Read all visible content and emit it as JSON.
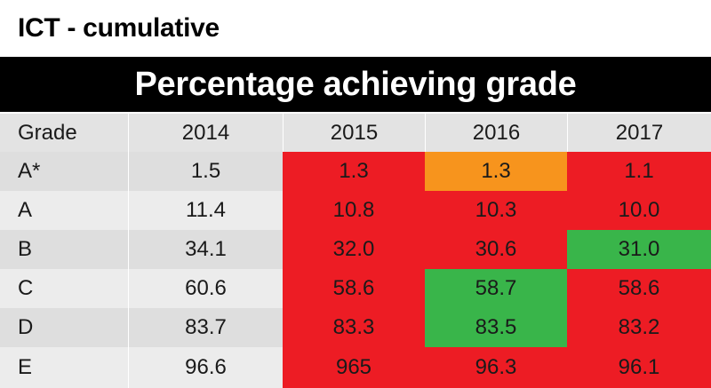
{
  "header": {
    "title": "ICT - cumulative",
    "banner": "Percentage achieving grade"
  },
  "colors": {
    "red": "#ed1c24",
    "orange": "#f7941d",
    "green": "#39b54a",
    "header_bg": "#000000"
  },
  "chart_data": {
    "type": "table",
    "title": "Percentage achieving grade",
    "columns": [
      "Grade",
      "2014",
      "2015",
      "2016",
      "2017"
    ],
    "rows": [
      {
        "grade": "A*",
        "values": [
          "1.5",
          "1.3",
          "1.3",
          "1.1"
        ],
        "status": [
          "none",
          "red",
          "orange",
          "red"
        ]
      },
      {
        "grade": "A",
        "values": [
          "11.4",
          "10.8",
          "10.3",
          "10.0"
        ],
        "status": [
          "none",
          "red",
          "red",
          "red"
        ]
      },
      {
        "grade": "B",
        "values": [
          "34.1",
          "32.0",
          "30.6",
          "31.0"
        ],
        "status": [
          "none",
          "red",
          "red",
          "green"
        ]
      },
      {
        "grade": "C",
        "values": [
          "60.6",
          "58.6",
          "58.7",
          "58.6"
        ],
        "status": [
          "none",
          "red",
          "green",
          "red"
        ]
      },
      {
        "grade": "D",
        "values": [
          "83.7",
          "83.3",
          "83.5",
          "83.2"
        ],
        "status": [
          "none",
          "red",
          "green",
          "red"
        ]
      },
      {
        "grade": "E",
        "values": [
          "96.6",
          "965",
          "96.3",
          "96.1"
        ],
        "status": [
          "none",
          "red",
          "red",
          "red"
        ]
      }
    ]
  }
}
